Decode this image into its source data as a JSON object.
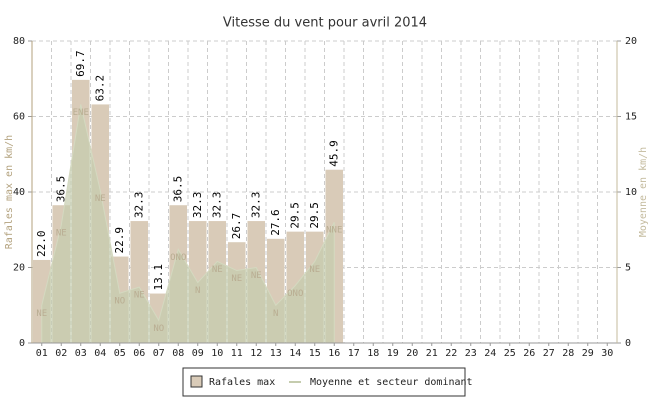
{
  "chart_data": {
    "type": "bar",
    "title": "Vitesse du vent pour avril 2014",
    "ylabel": "Rafales max en km/h",
    "y2label": "Moyenne en km/h",
    "categories": [
      "01",
      "02",
      "03",
      "04",
      "05",
      "06",
      "07",
      "08",
      "09",
      "10",
      "11",
      "12",
      "13",
      "14",
      "15",
      "16",
      "17",
      "18",
      "19",
      "20",
      "21",
      "22",
      "23",
      "24",
      "25",
      "26",
      "27",
      "28",
      "29",
      "30"
    ],
    "series": [
      {
        "name": "Rafales max",
        "type": "bar",
        "color": "#d9cbb8",
        "values": [
          22.0,
          36.5,
          69.7,
          63.2,
          22.9,
          32.3,
          13.1,
          36.5,
          32.3,
          32.3,
          26.7,
          32.3,
          27.6,
          29.5,
          29.5,
          45.9,
          null,
          null,
          null,
          null,
          null,
          null,
          null,
          null,
          null,
          null,
          null,
          null,
          null,
          null
        ],
        "value_labels": [
          "22.0",
          "36.5",
          "69.7",
          "63.2",
          "22.9",
          "32.3",
          "13.1",
          "36.5",
          "32.3",
          "32.3",
          "26.7",
          "32.3",
          "27.6",
          "29.5",
          "29.5",
          "45.9",
          null,
          null,
          null,
          null,
          null,
          null,
          null,
          null,
          null,
          null,
          null,
          null,
          null,
          null
        ]
      },
      {
        "name": "Moyenne et secteur dominant",
        "type": "area",
        "axis": "y2",
        "color": "#c5ccae",
        "values": [
          2.5,
          7.8,
          15.8,
          10.1,
          3.3,
          3.7,
          1.5,
          6.2,
          4.0,
          5.4,
          4.8,
          5.0,
          2.5,
          3.8,
          5.4,
          8.0,
          null,
          null,
          null,
          null,
          null,
          null,
          null,
          null,
          null,
          null,
          null,
          null,
          null,
          null
        ],
        "labels": [
          "NE",
          "NE",
          "ENE",
          "NE",
          "NO",
          "NE",
          "NO",
          "ONO",
          "N",
          "NE",
          "NE",
          "NE",
          "N",
          "ONO",
          "NE",
          "NNE",
          null,
          null,
          null,
          null,
          null,
          null,
          null,
          null,
          null,
          null,
          null,
          null,
          null,
          null
        ]
      }
    ],
    "ylim": [
      0,
      80
    ],
    "yticks": [
      0,
      20,
      40,
      60,
      80
    ],
    "y2lim": [
      0,
      20
    ],
    "y2ticks": [
      0,
      5,
      10,
      15,
      20
    ],
    "grid": true
  }
}
